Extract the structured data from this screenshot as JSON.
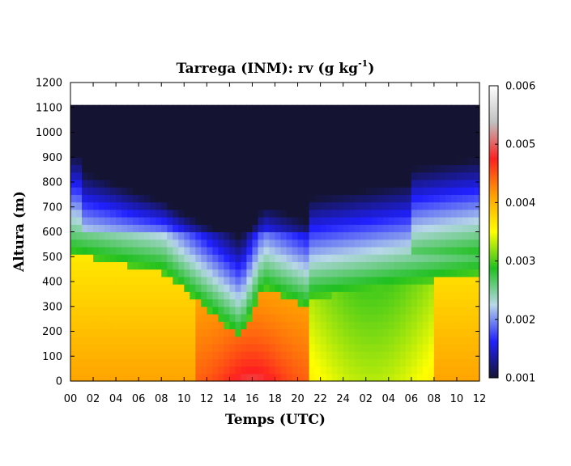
{
  "chart_data": {
    "type": "heatmap",
    "title": {
      "main": "Tarrega (INM): rv (g kg",
      "superscript": "-1",
      "suffix": ")"
    },
    "xlabel": "Temps (UTC)",
    "ylabel": "Altura (m)",
    "x_ticks": [
      "00",
      "02",
      "04",
      "06",
      "08",
      "10",
      "12",
      "14",
      "16",
      "18",
      "20",
      "22",
      "24",
      "02",
      "04",
      "06",
      "08",
      "10",
      "12"
    ],
    "y_ticks": [
      0,
      100,
      200,
      300,
      400,
      500,
      600,
      700,
      800,
      900,
      1000,
      1100,
      1200
    ],
    "ylim": [
      0,
      1200
    ],
    "data_top": 1110,
    "colorbar": {
      "range": [
        0.001,
        0.006
      ],
      "ticks": [
        "0.001",
        "0.002",
        "0.003",
        "0.004",
        "0.005",
        "0.006"
      ],
      "colors": [
        "#141432",
        "#2020ff",
        "#b8d8e8",
        "#20c020",
        "#ffff00",
        "#ffa000",
        "#ff2020",
        "#c0c0c0",
        "#ffffff"
      ]
    },
    "colors": {
      "very_dry": "#141432",
      "dry": "#2020ff",
      "moist": "#20c020",
      "very_moist": "#ff2020"
    }
  }
}
